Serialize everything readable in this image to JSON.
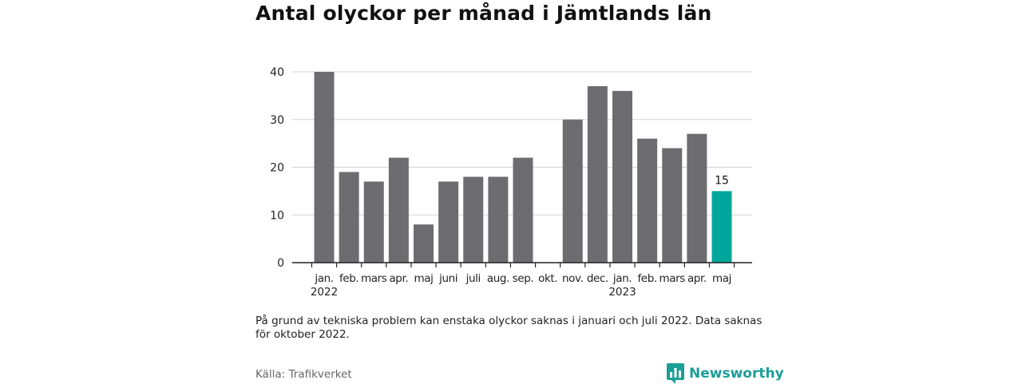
{
  "title": "Antal olyckor per månad i Jämtlands län",
  "note": "På grund av tekniska problem kan enstaka olyckor saknas i januari och juli 2022. Data saknas för oktober 2022.",
  "source": "Källa: Trafikverket",
  "brand": {
    "name": "Newsworthy",
    "icon": "newsworthy-logo-icon",
    "color": "#1a9e97"
  },
  "chart_data": {
    "type": "bar",
    "title": "Antal olyckor per månad i Jämtlands län",
    "categories": [
      "jan.",
      "feb.",
      "mars",
      "apr.",
      "maj",
      "juni",
      "juli",
      "aug.",
      "sep.",
      "okt.",
      "nov.",
      "dec.",
      "jan.",
      "feb.",
      "mars",
      "apr.",
      "maj"
    ],
    "year_labels": [
      {
        "index": 0,
        "label": "2022"
      },
      {
        "index": 12,
        "label": "2023"
      }
    ],
    "values": [
      40,
      19,
      17,
      22,
      8,
      17,
      18,
      18,
      22,
      null,
      30,
      37,
      36,
      26,
      24,
      27,
      15
    ],
    "highlight_index": 16,
    "highlight_label": "15",
    "colors": {
      "bar": "#6d6c71",
      "highlight": "#00a69c",
      "grid": "#d4d4d4"
    },
    "yticks": [
      0,
      10,
      20,
      30,
      40
    ],
    "ylim": [
      0,
      40
    ],
    "grid": true,
    "xlabel": "",
    "ylabel": ""
  }
}
